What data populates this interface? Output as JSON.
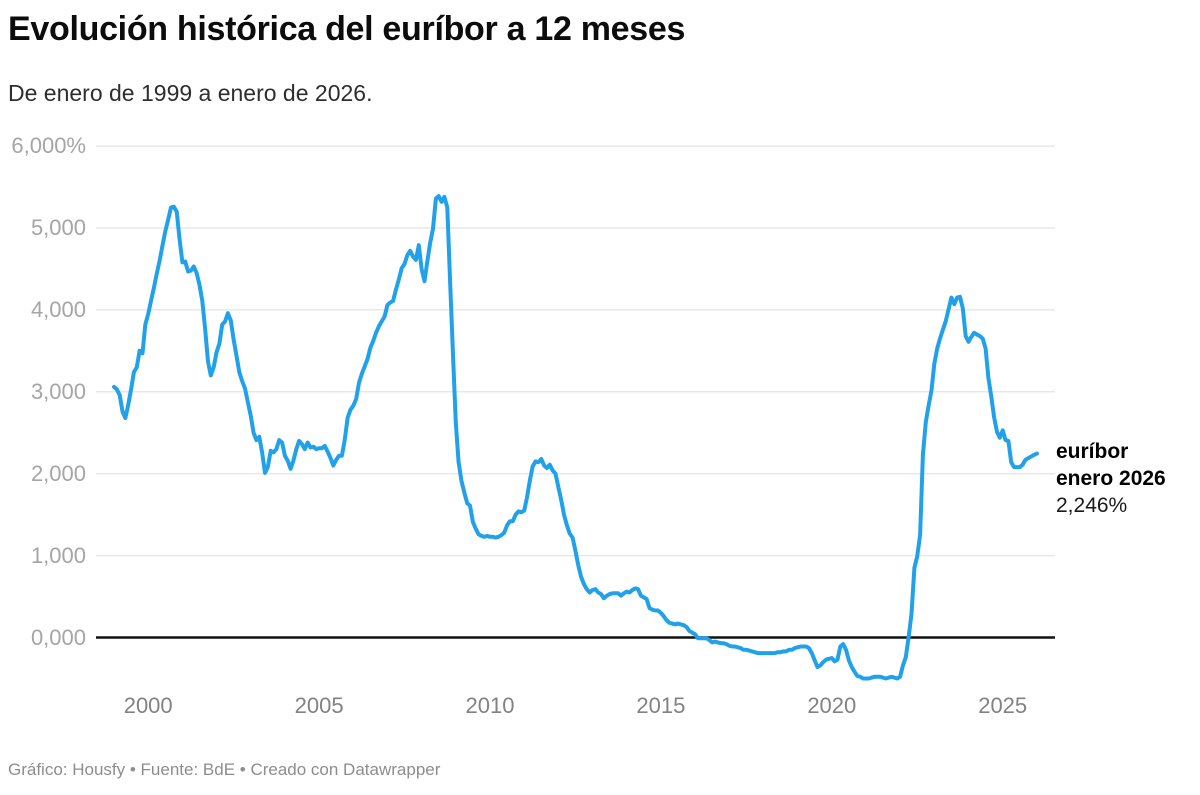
{
  "header": {
    "title": "Evolución histórica del euríbor a 12 meses",
    "subtitle": "De enero de 1999 a enero de 2026."
  },
  "annotation": {
    "label_line1": "euríbor",
    "label_line2": "enero 2026",
    "value": "2,246%"
  },
  "footer": {
    "text": "Gráfico: Housfy • Fuente: BdE • Creado con Datawrapper"
  },
  "colors": {
    "line": "#21a1ea",
    "grid": "#e8e8e8",
    "zero_line": "#111111",
    "y_label": "#a5a5a5",
    "x_label": "#828282",
    "title": "#0c0c0c"
  },
  "chart_data": {
    "type": "line",
    "title": "Evolución histórica del euríbor a 12 meses",
    "subtitle": "De enero de 1999 a enero de 2026.",
    "series_name": "euríbor a 12 meses",
    "unit": "%",
    "xlabel": "",
    "ylabel": "",
    "grid": "horizontal",
    "legend": "none",
    "xlim": [
      1999.0,
      2026.08
    ],
    "ylim": [
      -0.55,
      6.1
    ],
    "y_ticks": [
      {
        "label": "6,000%",
        "value": 6
      },
      {
        "label": "5,000",
        "value": 5
      },
      {
        "label": "4,000",
        "value": 4
      },
      {
        "label": "3,000",
        "value": 3
      },
      {
        "label": "2,000",
        "value": 2
      },
      {
        "label": "1,000",
        "value": 1
      },
      {
        "label": "0,000",
        "value": 0
      }
    ],
    "x_ticks": [
      {
        "label": "2000",
        "value": 2000
      },
      {
        "label": "2005",
        "value": 2005
      },
      {
        "label": "2010",
        "value": 2010
      },
      {
        "label": "2015",
        "value": 2015
      },
      {
        "label": "2020",
        "value": 2020
      },
      {
        "label": "2025",
        "value": 2025
      }
    ],
    "start": "1999-01",
    "end": "2026-01",
    "frequency": "monthly",
    "end_point": {
      "date": "enero 2026",
      "value": 2.246,
      "value_label": "2,246%"
    },
    "values": [
      3.06,
      3.03,
      2.96,
      2.76,
      2.68,
      2.84,
      3.03,
      3.24,
      3.3,
      3.5,
      3.47,
      3.82,
      3.95,
      4.11,
      4.27,
      4.44,
      4.6,
      4.78,
      4.96,
      5.1,
      5.25,
      5.26,
      5.2,
      4.87,
      4.58,
      4.59,
      4.47,
      4.48,
      4.53,
      4.45,
      4.31,
      4.11,
      3.77,
      3.37,
      3.2,
      3.3,
      3.48,
      3.59,
      3.82,
      3.86,
      3.96,
      3.87,
      3.64,
      3.44,
      3.24,
      3.13,
      3.04,
      2.87,
      2.71,
      2.5,
      2.41,
      2.45,
      2.26,
      2.01,
      2.08,
      2.28,
      2.26,
      2.3,
      2.41,
      2.38,
      2.22,
      2.16,
      2.06,
      2.16,
      2.3,
      2.4,
      2.36,
      2.3,
      2.38,
      2.32,
      2.33,
      2.3,
      2.31,
      2.31,
      2.34,
      2.27,
      2.19,
      2.1,
      2.17,
      2.22,
      2.22,
      2.41,
      2.68,
      2.78,
      2.83,
      2.91,
      3.11,
      3.22,
      3.31,
      3.4,
      3.54,
      3.62,
      3.72,
      3.8,
      3.86,
      3.92,
      4.06,
      4.09,
      4.11,
      4.25,
      4.37,
      4.51,
      4.56,
      4.67,
      4.72,
      4.65,
      4.61,
      4.79,
      4.5,
      4.35,
      4.59,
      4.82,
      4.99,
      5.36,
      5.39,
      5.32,
      5.38,
      5.25,
      4.35,
      3.45,
      2.62,
      2.14,
      1.91,
      1.77,
      1.64,
      1.61,
      1.41,
      1.33,
      1.26,
      1.24,
      1.23,
      1.24,
      1.23,
      1.23,
      1.22,
      1.23,
      1.25,
      1.28,
      1.37,
      1.42,
      1.42,
      1.5,
      1.54,
      1.53,
      1.55,
      1.71,
      1.92,
      2.09,
      2.15,
      2.14,
      2.18,
      2.1,
      2.07,
      2.11,
      2.04,
      2.0,
      1.84,
      1.68,
      1.5,
      1.37,
      1.27,
      1.22,
      1.06,
      0.88,
      0.74,
      0.65,
      0.59,
      0.55,
      0.58,
      0.59,
      0.55,
      0.53,
      0.48,
      0.51,
      0.53,
      0.54,
      0.54,
      0.54,
      0.51,
      0.54,
      0.56,
      0.55,
      0.58,
      0.6,
      0.59,
      0.51,
      0.49,
      0.47,
      0.36,
      0.34,
      0.33,
      0.33,
      0.3,
      0.26,
      0.21,
      0.18,
      0.17,
      0.16,
      0.17,
      0.16,
      0.15,
      0.13,
      0.08,
      0.06,
      0.04,
      -0.01,
      -0.01,
      -0.01,
      -0.01,
      -0.03,
      -0.06,
      -0.05,
      -0.06,
      -0.07,
      -0.07,
      -0.08,
      -0.1,
      -0.11,
      -0.11,
      -0.12,
      -0.13,
      -0.15,
      -0.15,
      -0.16,
      -0.17,
      -0.18,
      -0.19,
      -0.19,
      -0.19,
      -0.19,
      -0.19,
      -0.19,
      -0.19,
      -0.18,
      -0.18,
      -0.17,
      -0.17,
      -0.15,
      -0.15,
      -0.13,
      -0.12,
      -0.11,
      -0.11,
      -0.11,
      -0.13,
      -0.19,
      -0.28,
      -0.36,
      -0.34,
      -0.3,
      -0.27,
      -0.26,
      -0.25,
      -0.29,
      -0.27,
      -0.11,
      -0.08,
      -0.15,
      -0.28,
      -0.36,
      -0.42,
      -0.47,
      -0.48,
      -0.5,
      -0.5,
      -0.5,
      -0.49,
      -0.48,
      -0.48,
      -0.48,
      -0.49,
      -0.5,
      -0.49,
      -0.48,
      -0.49,
      -0.5,
      -0.48,
      -0.34,
      -0.24,
      0.01,
      0.29,
      0.85,
      0.99,
      1.25,
      2.23,
      2.63,
      2.83,
      3.02,
      3.34,
      3.53,
      3.65,
      3.76,
      3.86,
      4.01,
      4.15,
      4.07,
      4.15,
      4.16,
      4.02,
      3.68,
      3.61,
      3.67,
      3.72,
      3.7,
      3.68,
      3.65,
      3.53,
      3.17,
      2.94,
      2.69,
      2.51,
      2.44,
      2.53,
      2.41,
      2.4,
      2.14,
      2.08,
      2.08,
      2.08,
      2.11,
      2.17,
      2.19,
      2.21,
      2.23,
      2.246
    ]
  }
}
